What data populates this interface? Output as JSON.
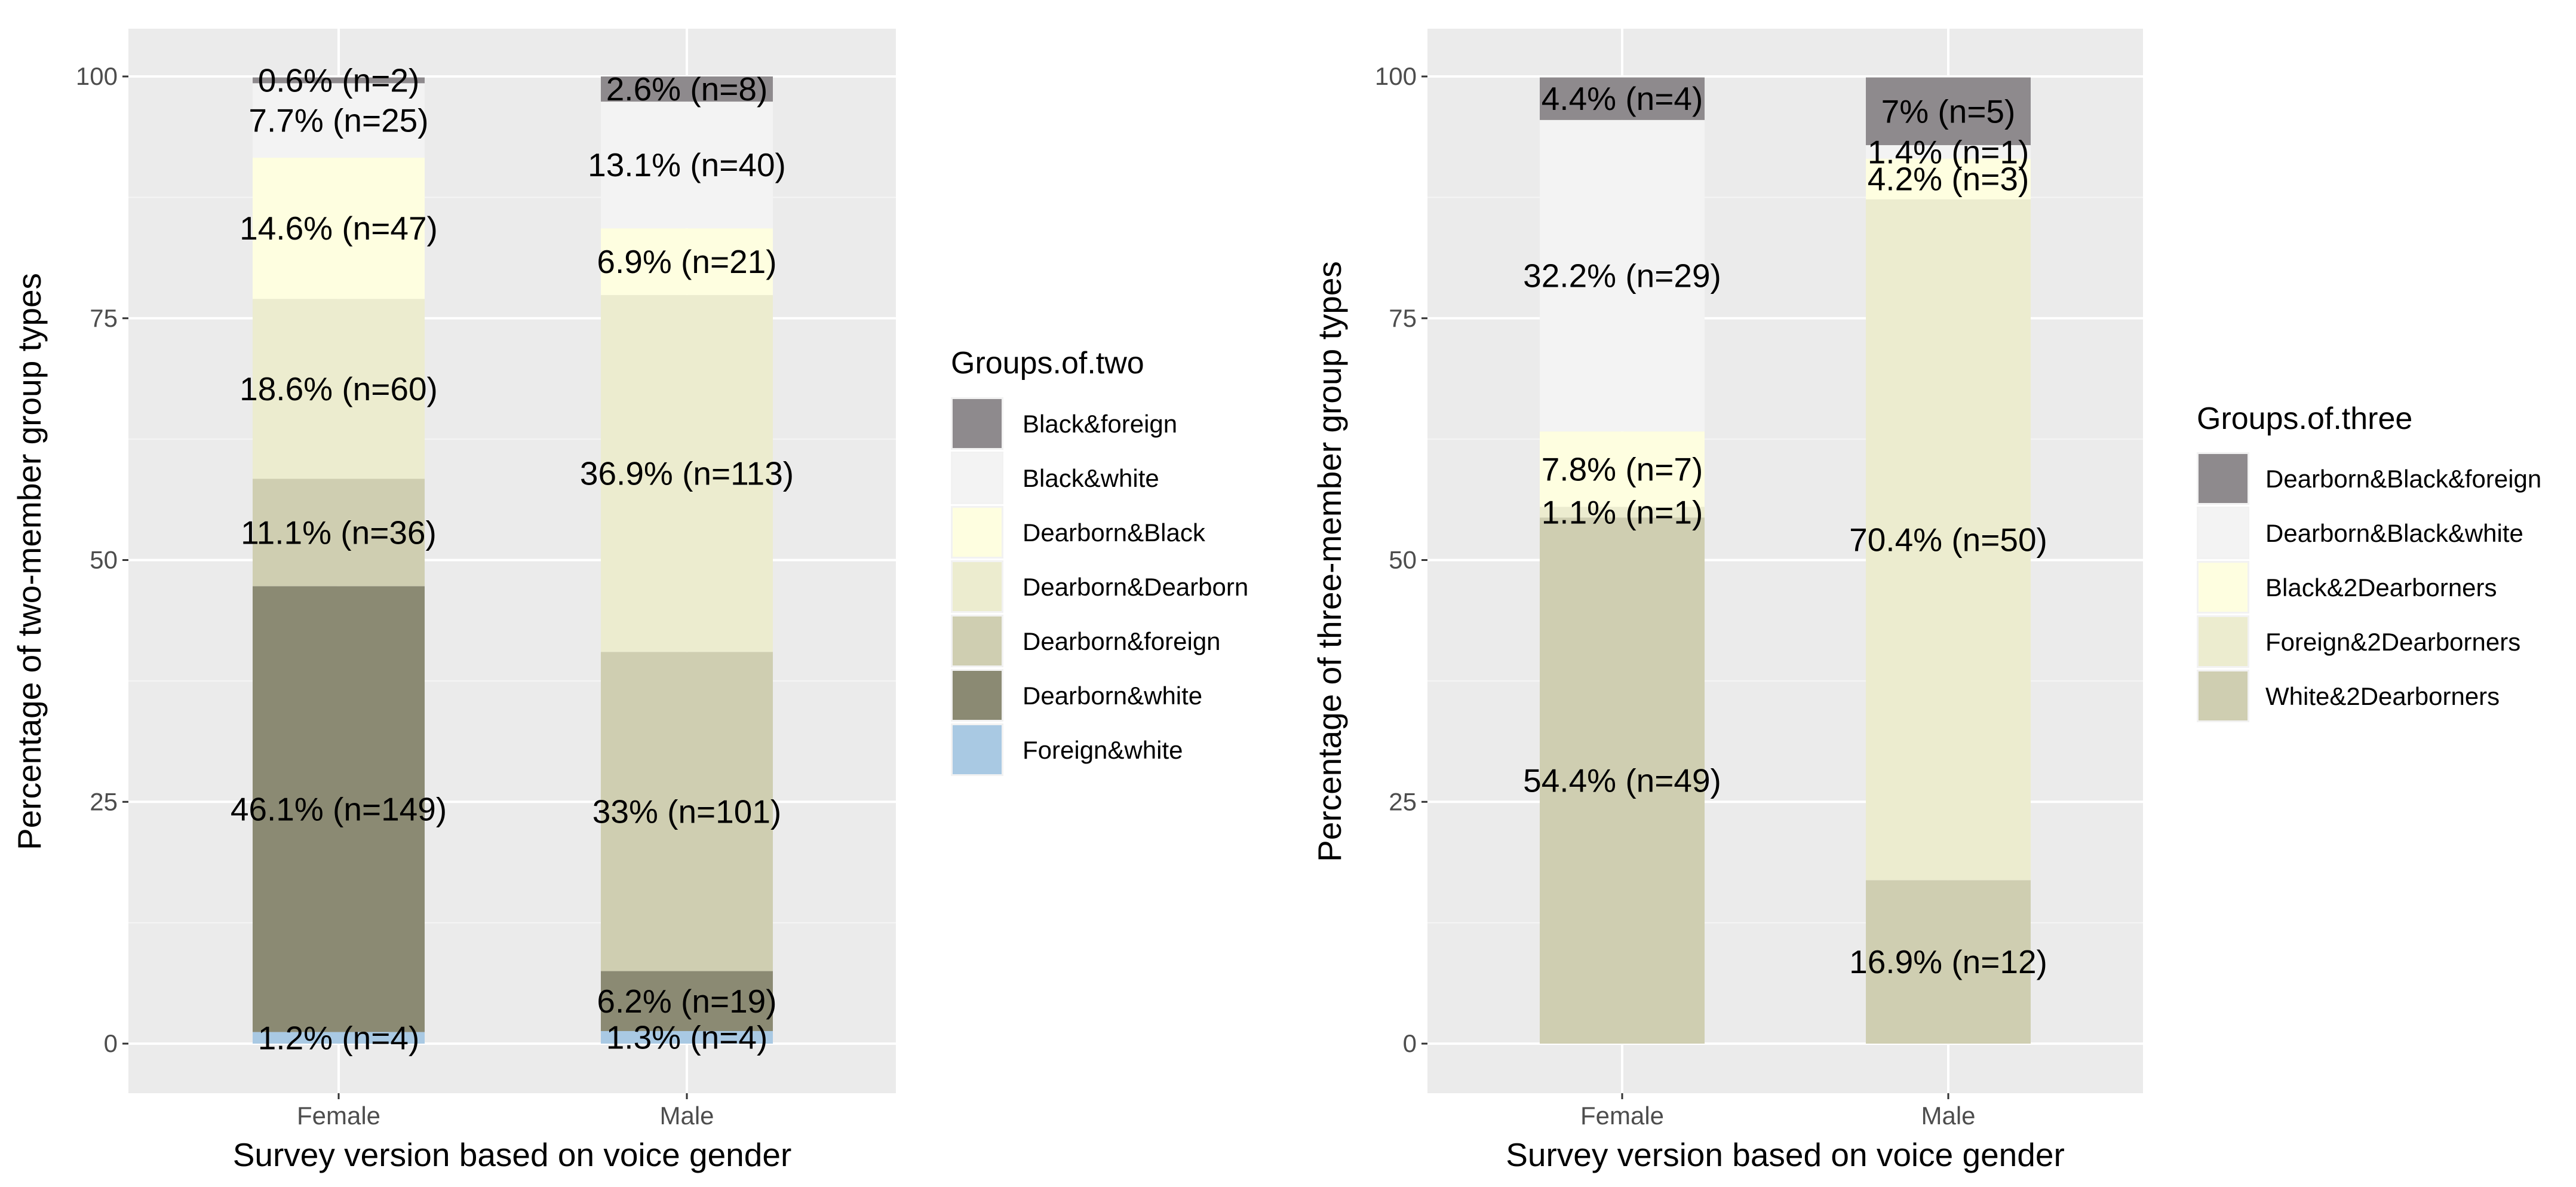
{
  "chart_data": [
    {
      "type": "bar",
      "stacked": true,
      "title": "",
      "xlabel": "Survey version based on voice gender",
      "ylabel": "Percentage of two-member group types",
      "ylim": [
        0,
        100
      ],
      "yticks": [
        0,
        25,
        50,
        75,
        100
      ],
      "grid": true,
      "categories": [
        "Female",
        "Male"
      ],
      "legend": {
        "title": "Groups.of.two",
        "position": "right",
        "entries": [
          {
            "name": "Black&foreign",
            "color": "#8e8a8d"
          },
          {
            "name": "Black&white",
            "color": "#f3f3f3"
          },
          {
            "name": "Dearborn&Black",
            "color": "#fefee0"
          },
          {
            "name": "Dearborn&Dearborn",
            "color": "#ececcf"
          },
          {
            "name": "Dearborn&foreign",
            "color": "#cfceb1"
          },
          {
            "name": "Dearborn&white",
            "color": "#8b8a73"
          },
          {
            "name": "Foreign&white",
            "color": "#a9c9e3"
          }
        ]
      },
      "bars": [
        {
          "category": "Female",
          "segments": [
            {
              "series": "Foreign&white",
              "value": 1.2,
              "label": "1.2% (n=4)"
            },
            {
              "series": "Dearborn&white",
              "value": 46.1,
              "label": "46.1% (n=149)"
            },
            {
              "series": "Dearborn&foreign",
              "value": 11.1,
              "label": "11.1% (n=36)"
            },
            {
              "series": "Dearborn&Dearborn",
              "value": 18.6,
              "label": "18.6% (n=60)"
            },
            {
              "series": "Dearborn&Black",
              "value": 14.6,
              "label": "14.6% (n=47)"
            },
            {
              "series": "Black&white",
              "value": 7.7,
              "label": "7.7% (n=25)"
            },
            {
              "series": "Black&foreign",
              "value": 0.6,
              "label": "0.6% (n=2)"
            }
          ]
        },
        {
          "category": "Male",
          "segments": [
            {
              "series": "Foreign&white",
              "value": 1.3,
              "label": "1.3% (n=4)"
            },
            {
              "series": "Dearborn&white",
              "value": 6.2,
              "label": "6.2% (n=19)"
            },
            {
              "series": "Dearborn&foreign",
              "value": 33,
              "label": "33% (n=101)"
            },
            {
              "series": "Dearborn&Dearborn",
              "value": 36.9,
              "label": "36.9% (n=113)"
            },
            {
              "series": "Dearborn&Black",
              "value": 6.9,
              "label": "6.9% (n=21)"
            },
            {
              "series": "Black&white",
              "value": 13.1,
              "label": "13.1% (n=40)"
            },
            {
              "series": "Black&foreign",
              "value": 2.6,
              "label": "2.6% (n=8)"
            }
          ]
        }
      ]
    },
    {
      "type": "bar",
      "stacked": true,
      "title": "",
      "xlabel": "Survey version based on voice gender",
      "ylabel": "Percentage of three-member group types",
      "ylim": [
        0,
        100
      ],
      "yticks": [
        0,
        25,
        50,
        75,
        100
      ],
      "grid": true,
      "categories": [
        "Female",
        "Male"
      ],
      "legend": {
        "title": "Groups.of.three",
        "position": "right",
        "entries": [
          {
            "name": "Dearborn&Black&foreign",
            "color": "#8e8a8d"
          },
          {
            "name": "Dearborn&Black&white",
            "color": "#f3f3f3"
          },
          {
            "name": "Black&2Dearborners",
            "color": "#fefee0"
          },
          {
            "name": "Foreign&2Dearborners",
            "color": "#ececcf"
          },
          {
            "name": "White&2Dearborners",
            "color": "#cfceb1"
          }
        ]
      },
      "bars": [
        {
          "category": "Female",
          "segments": [
            {
              "series": "White&2Dearborners",
              "value": 54.4,
              "label": "54.4% (n=49)"
            },
            {
              "series": "Foreign&2Dearborners",
              "value": 1.1,
              "label": "1.1% (n=1)"
            },
            {
              "series": "Black&2Dearborners",
              "value": 7.8,
              "label": "7.8% (n=7)"
            },
            {
              "series": "Dearborn&Black&white",
              "value": 32.2,
              "label": "32.2% (n=29)"
            },
            {
              "series": "Dearborn&Black&foreign",
              "value": 4.4,
              "label": "4.4% (n=4)"
            }
          ]
        },
        {
          "category": "Male",
          "segments": [
            {
              "series": "White&2Dearborners",
              "value": 16.9,
              "label": "16.9% (n=12)"
            },
            {
              "series": "Foreign&2Dearborners",
              "value": 70.4,
              "label": "70.4% (n=50)"
            },
            {
              "series": "Black&2Dearborners",
              "value": 4.2,
              "label": "4.2% (n=3)"
            },
            {
              "series": "Dearborn&Black&white",
              "value": 1.4,
              "label": "1.4% (n=1)"
            },
            {
              "series": "Dearborn&Black&foreign",
              "value": 7,
              "label": "7% (n=5)"
            }
          ]
        }
      ]
    }
  ]
}
